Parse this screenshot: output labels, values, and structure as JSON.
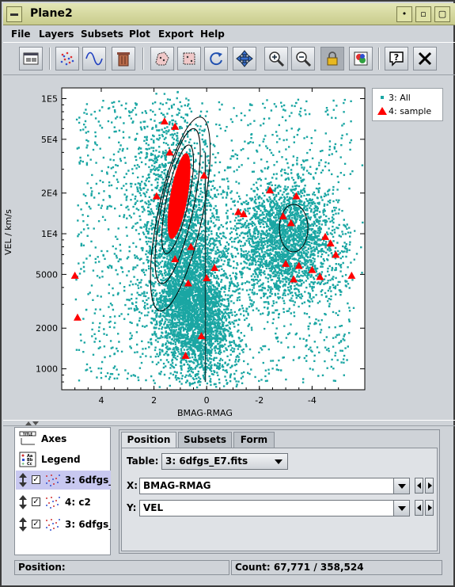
{
  "window": {
    "title": "Plane2"
  },
  "menubar": [
    {
      "label": "File"
    },
    {
      "label": "Layers"
    },
    {
      "label": "Subsets"
    },
    {
      "label": "Plot"
    },
    {
      "label": "Export"
    },
    {
      "label": "Help"
    }
  ],
  "toolbar_icons": [
    "window-icon",
    "mark-points-icon",
    "function-icon",
    "trash-icon",
    "draw-subset-icon",
    "blob-subset-icon",
    "rescale-icon",
    "pan-icon",
    "zoom-in-icon",
    "zoom-out-icon",
    "lock-icon",
    "color-icon",
    "help-icon",
    "close-icon"
  ],
  "plot": {
    "xlabel": "BMAG-RMAG",
    "ylabel": "VEL / km/s",
    "x_ticks": [
      "4",
      "2",
      "0",
      "-2",
      "-4"
    ],
    "y_ticks": [
      "1E5",
      "5E4",
      "2E4",
      "1E4",
      "5000",
      "2000",
      "1000"
    ],
    "legend": [
      {
        "name": "3: All",
        "color": "#1aa6a3"
      },
      {
        "name": "4: sample",
        "color": "#ff0000"
      }
    ]
  },
  "chart_data": {
    "type": "scatter",
    "xlabel": "BMAG-RMAG",
    "ylabel": "VEL / km/s",
    "xlim": [
      5.5,
      -6.0
    ],
    "ylim": [
      700,
      120000
    ],
    "y_scale": "log",
    "legend_position": "top-right",
    "series": [
      {
        "name": "3: All",
        "color": "#1aa6a3",
        "marker": "square"
      },
      {
        "name": "4: sample",
        "color": "#ff0000",
        "marker": "triangle",
        "points": [
          [
            1.6,
            68000
          ],
          [
            1.2,
            62000
          ],
          [
            1.4,
            40000
          ],
          [
            0.9,
            32000
          ],
          [
            0.1,
            27000
          ],
          [
            -2.4,
            21000
          ],
          [
            -3.4,
            19000
          ],
          [
            1.9,
            19000
          ],
          [
            1.0,
            18000
          ],
          [
            -1.2,
            14500
          ],
          [
            -1.4,
            14000
          ],
          [
            -2.9,
            13500
          ],
          [
            -3.2,
            12000
          ],
          [
            -4.5,
            9500
          ],
          [
            -4.7,
            8500
          ],
          [
            -4.9,
            7000
          ],
          [
            0.6,
            8000
          ],
          [
            1.2,
            6500
          ],
          [
            -0.3,
            5600
          ],
          [
            -3.0,
            6000
          ],
          [
            -3.5,
            5800
          ],
          [
            -4.0,
            5400
          ],
          [
            -4.3,
            4800
          ],
          [
            -5.5,
            4900
          ],
          [
            0.0,
            4700
          ],
          [
            -3.3,
            4600
          ],
          [
            0.7,
            4300
          ],
          [
            5.0,
            4900
          ],
          [
            4.9,
            2400
          ],
          [
            0.2,
            1750
          ],
          [
            0.8,
            1250
          ]
        ]
      },
      {
        "name": "contours",
        "color": "#000000",
        "marker": "line"
      }
    ]
  },
  "layers_list": {
    "items": [
      {
        "label": "Axes"
      },
      {
        "label": "Legend"
      },
      {
        "label": "3: 6dfgs_",
        "checked": true,
        "selected": true
      },
      {
        "label": "4: c2",
        "checked": true,
        "selected": false
      },
      {
        "label": "3: 6dfgs_",
        "checked": true,
        "selected": false
      }
    ]
  },
  "config_panel": {
    "tabs": [
      {
        "label": "Position",
        "active": true
      },
      {
        "label": "Subsets",
        "active": false
      },
      {
        "label": "Form",
        "active": false
      }
    ],
    "table_label": "Table:",
    "table_value": "3: 6dfgs_E7.fits",
    "x_label": "X:",
    "x_value": "BMAG-RMAG",
    "y_label": "Y:",
    "y_value": "VEL"
  },
  "status": {
    "position_label": "Position:",
    "count": "Count: 67,771 / 358,524"
  }
}
